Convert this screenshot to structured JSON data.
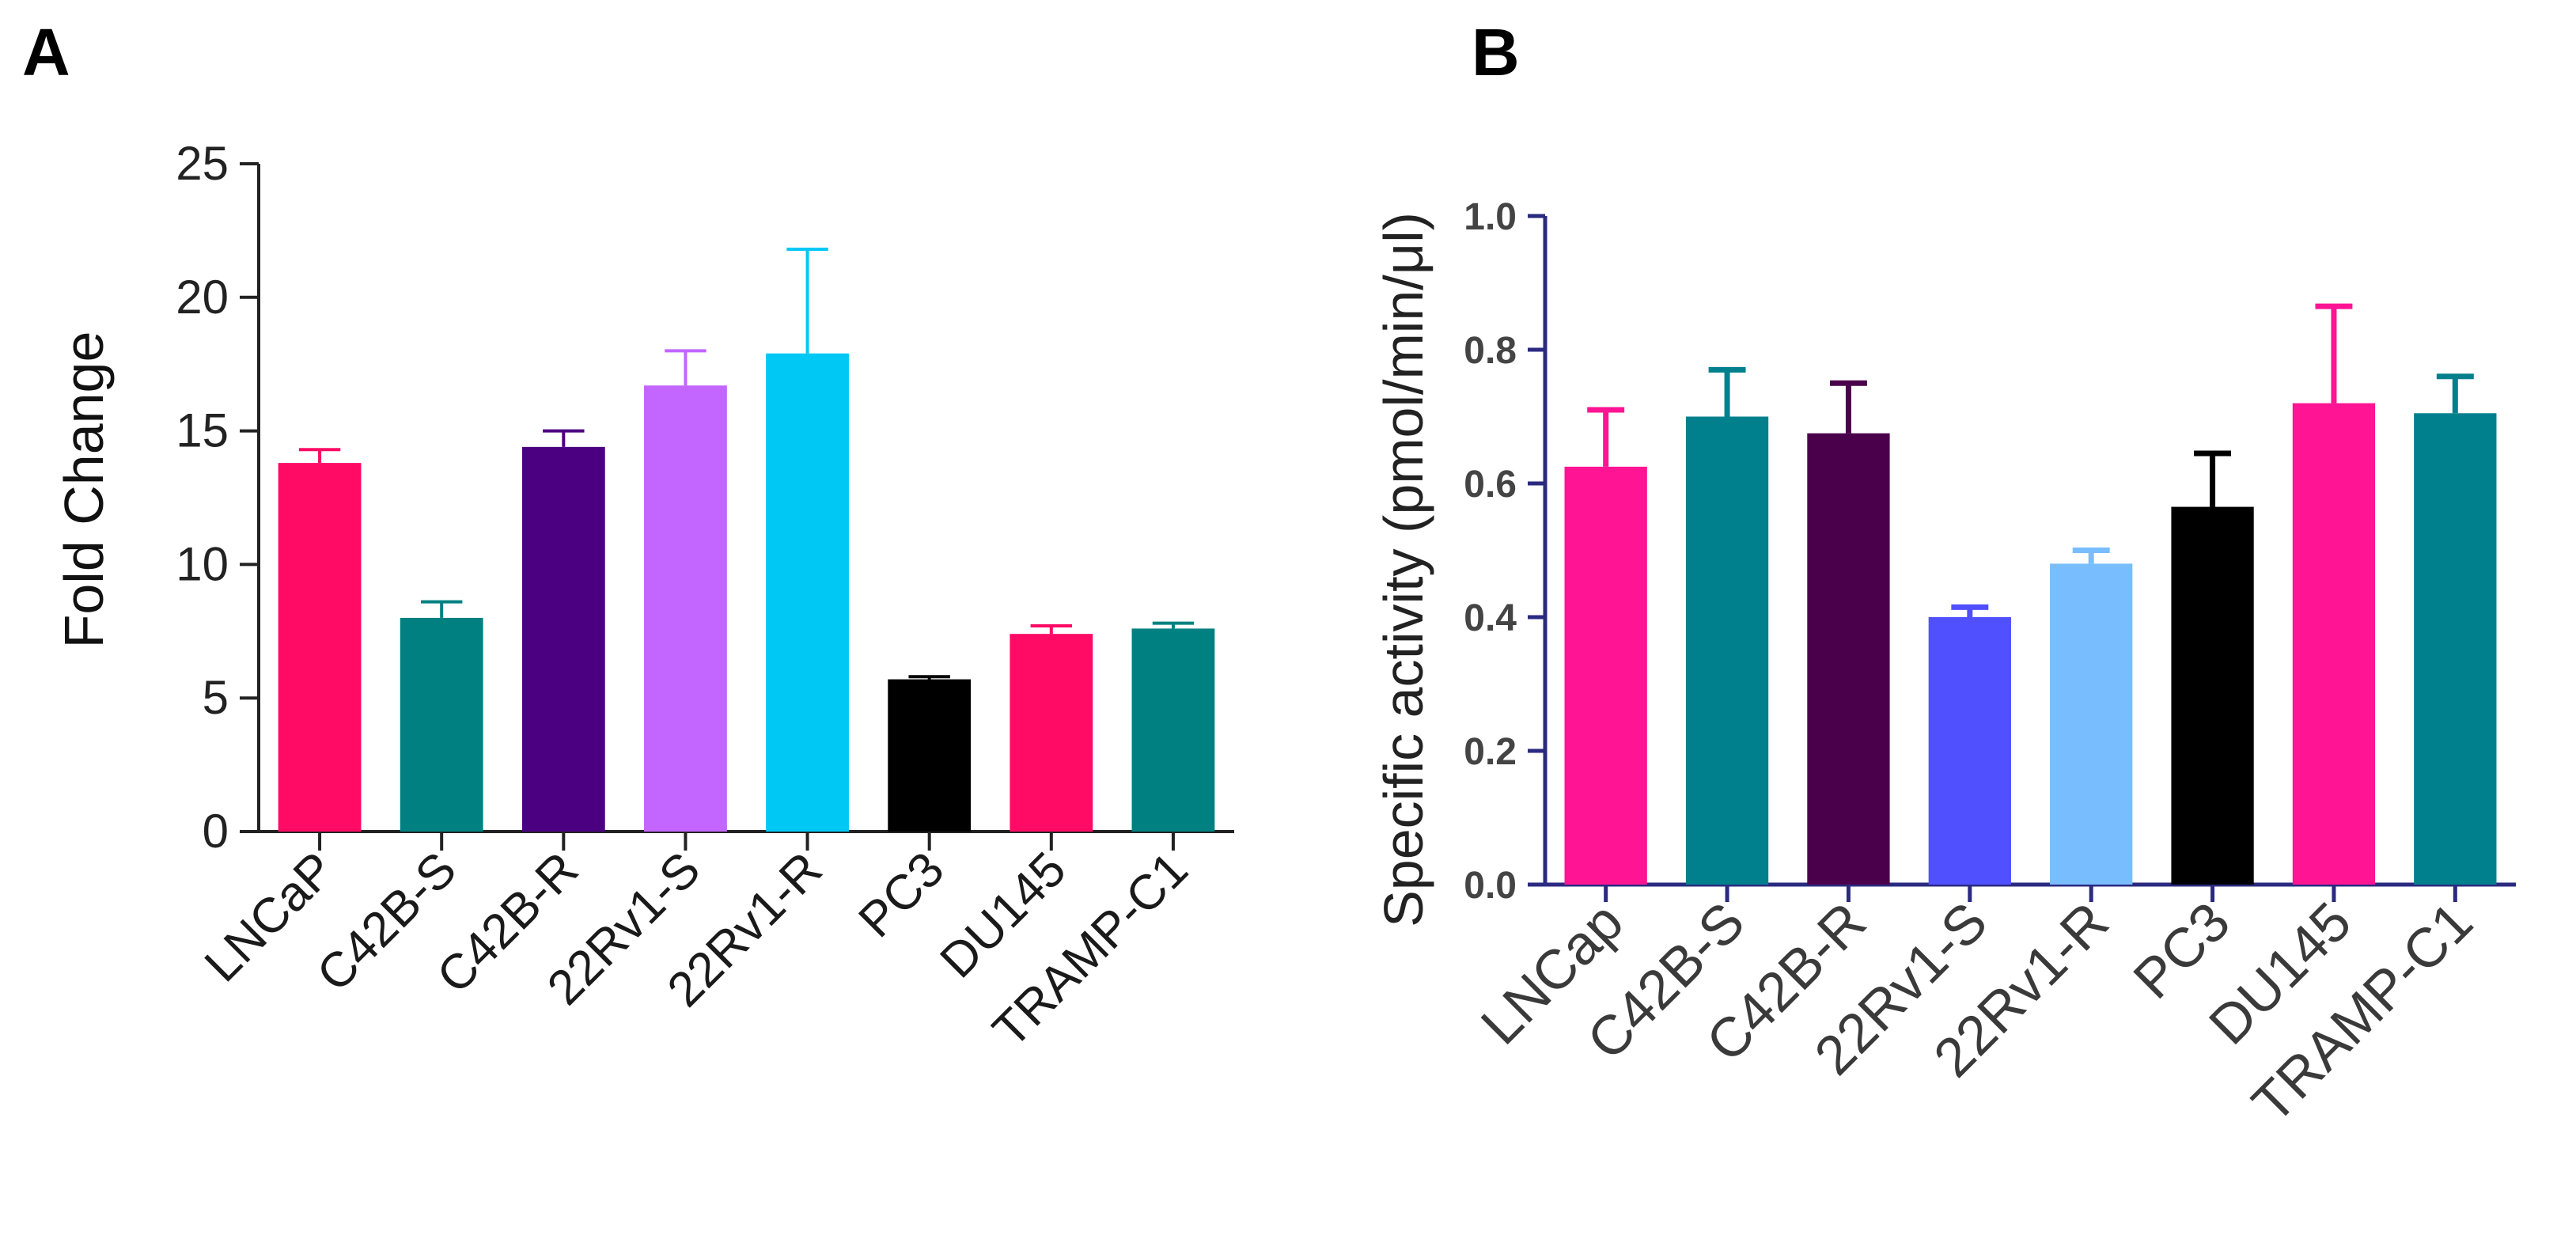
{
  "chart_data": [
    {
      "panel": "A",
      "type": "bar",
      "title": "",
      "xlabel": "",
      "ylabel": "Fold Change",
      "ylim": [
        0,
        25
      ],
      "yticks": [
        0,
        5,
        10,
        15,
        20,
        25
      ],
      "categories": [
        "LNCaP",
        "C42B-S",
        "C42B-R",
        "22Rv1-S",
        "22Rv1-R",
        "PC3",
        "DU145",
        "TRAMP-C1"
      ],
      "values": [
        13.8,
        8.0,
        14.4,
        16.7,
        17.9,
        5.7,
        7.4,
        7.6
      ],
      "errors": [
        0.5,
        0.6,
        0.6,
        1.3,
        3.9,
        0.1,
        0.3,
        0.2
      ],
      "colors": [
        "#ff0a64",
        "#008080",
        "#4b0082",
        "#c266ff",
        "#00c8f5",
        "#000000",
        "#ff0a64",
        "#008080"
      ]
    },
    {
      "panel": "B",
      "type": "bar",
      "title": "",
      "xlabel": "",
      "ylabel": "Specific activity (pmol/min/μl)",
      "ylim": [
        0,
        1.0
      ],
      "yticks": [
        "0.0",
        "0.2",
        "0.4",
        "0.6",
        "0.8",
        "1.0"
      ],
      "categories": [
        "LNCap",
        "C42B-S",
        "C42B-R",
        "22Rv1-S",
        "22Rv1-R",
        "PC3",
        "DU145",
        "TRAMP-C1"
      ],
      "values": [
        0.625,
        0.7,
        0.675,
        0.4,
        0.48,
        0.565,
        0.72,
        0.705
      ],
      "errors": [
        0.085,
        0.07,
        0.075,
        0.015,
        0.02,
        0.08,
        0.145,
        0.055
      ],
      "colors": [
        "#ff1493",
        "#00808c",
        "#4b004b",
        "#5050ff",
        "#78beff",
        "#000000",
        "#ff1493",
        "#00808c"
      ]
    }
  ]
}
